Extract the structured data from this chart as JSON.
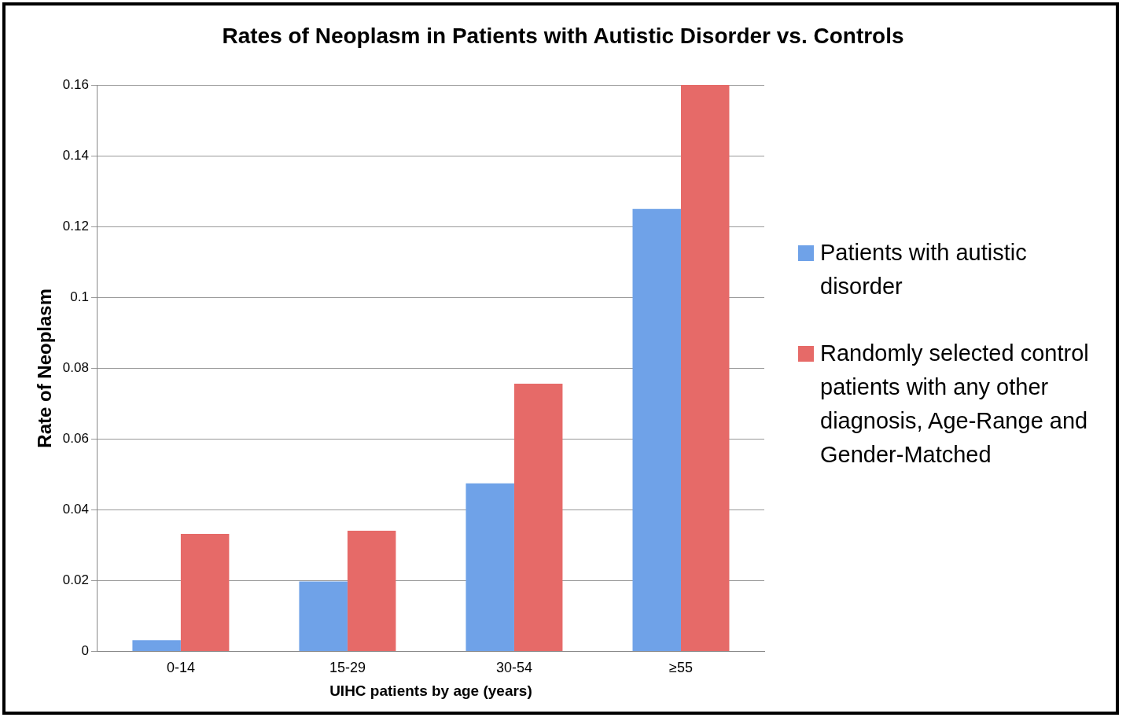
{
  "chart_data": {
    "type": "bar",
    "title": "Rates of Neoplasm in Patients with Autistic Disorder vs. Controls",
    "xlabel": "UIHC patients by age (years)",
    "ylabel": "Rate of Neoplasm",
    "categories": [
      "0-14",
      "15-29",
      "30-54",
      "≥55"
    ],
    "series": [
      {
        "name": "Patients with autistic disorder",
        "color": "#6fa2e8",
        "values": [
          0.0032,
          0.0198,
          0.0475,
          0.125
        ]
      },
      {
        "name": "Randomly selected control patients with any other diagnosis, Age-Range and Gender-Matched",
        "color": "#e66a68",
        "values": [
          0.0332,
          0.0341,
          0.0756,
          0.16
        ]
      }
    ],
    "ylim": [
      0,
      0.16
    ],
    "yticks": [
      0,
      0.02,
      0.04,
      0.06,
      0.08,
      0.1,
      0.12,
      0.14,
      0.16
    ],
    "grid": "y",
    "legend": "right"
  }
}
